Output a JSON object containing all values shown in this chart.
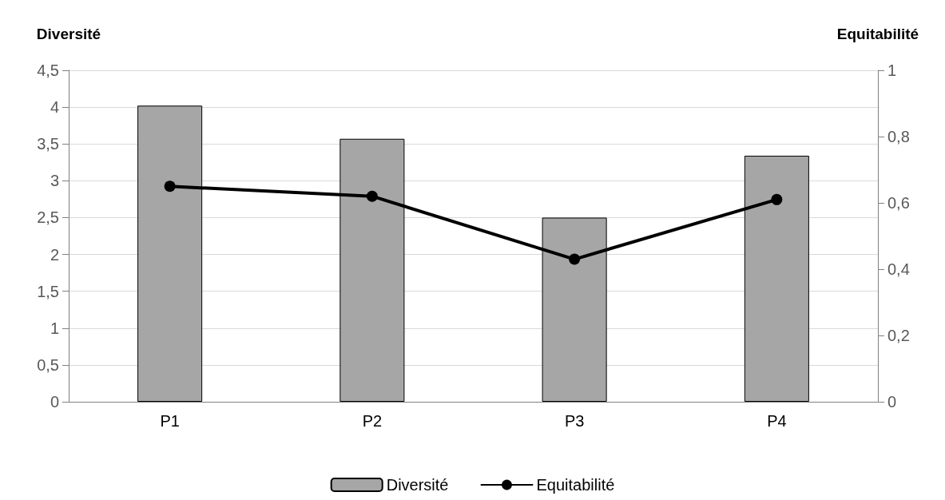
{
  "chart_data": {
    "type": "bar",
    "categories": [
      "P1",
      "P2",
      "P3",
      "P4"
    ],
    "ylabel": "Diversité",
    "y2label": "Equitabilité",
    "series": [
      {
        "name": "Diversité",
        "color": "#a6a6a6",
        "values": [
          4.02,
          3.57,
          2.5,
          3.34
        ]
      },
      {
        "name": "Equitabilité",
        "type": "line",
        "axis": "y2",
        "color": "#000000",
        "marker": "circle",
        "line_style": "solid",
        "values": [
          0.65,
          0.62,
          0.43,
          0.61
        ]
      }
    ],
    "ylim": [
      0,
      4.5
    ],
    "yticks": [
      0,
      {
        "value": 0.5,
        "label": "0,5"
      },
      1,
      {
        "value": 1.5,
        "label": "1,5"
      },
      2,
      {
        "value": 2.5,
        "label": "2,5"
      },
      3,
      {
        "value": 3.5,
        "label": "3,5"
      },
      4,
      {
        "value": 4.5,
        "label": "4,5"
      }
    ],
    "y2lim": [
      0,
      1
    ],
    "y2ticks": [
      0,
      {
        "value": 0.2,
        "label": "0,2"
      },
      {
        "value": 0.4,
        "label": "0,4"
      },
      {
        "value": 0.6,
        "label": "0,6"
      },
      {
        "value": 0.8,
        "label": "0,8"
      },
      1
    ],
    "grid": "y",
    "legend": "bottom"
  }
}
